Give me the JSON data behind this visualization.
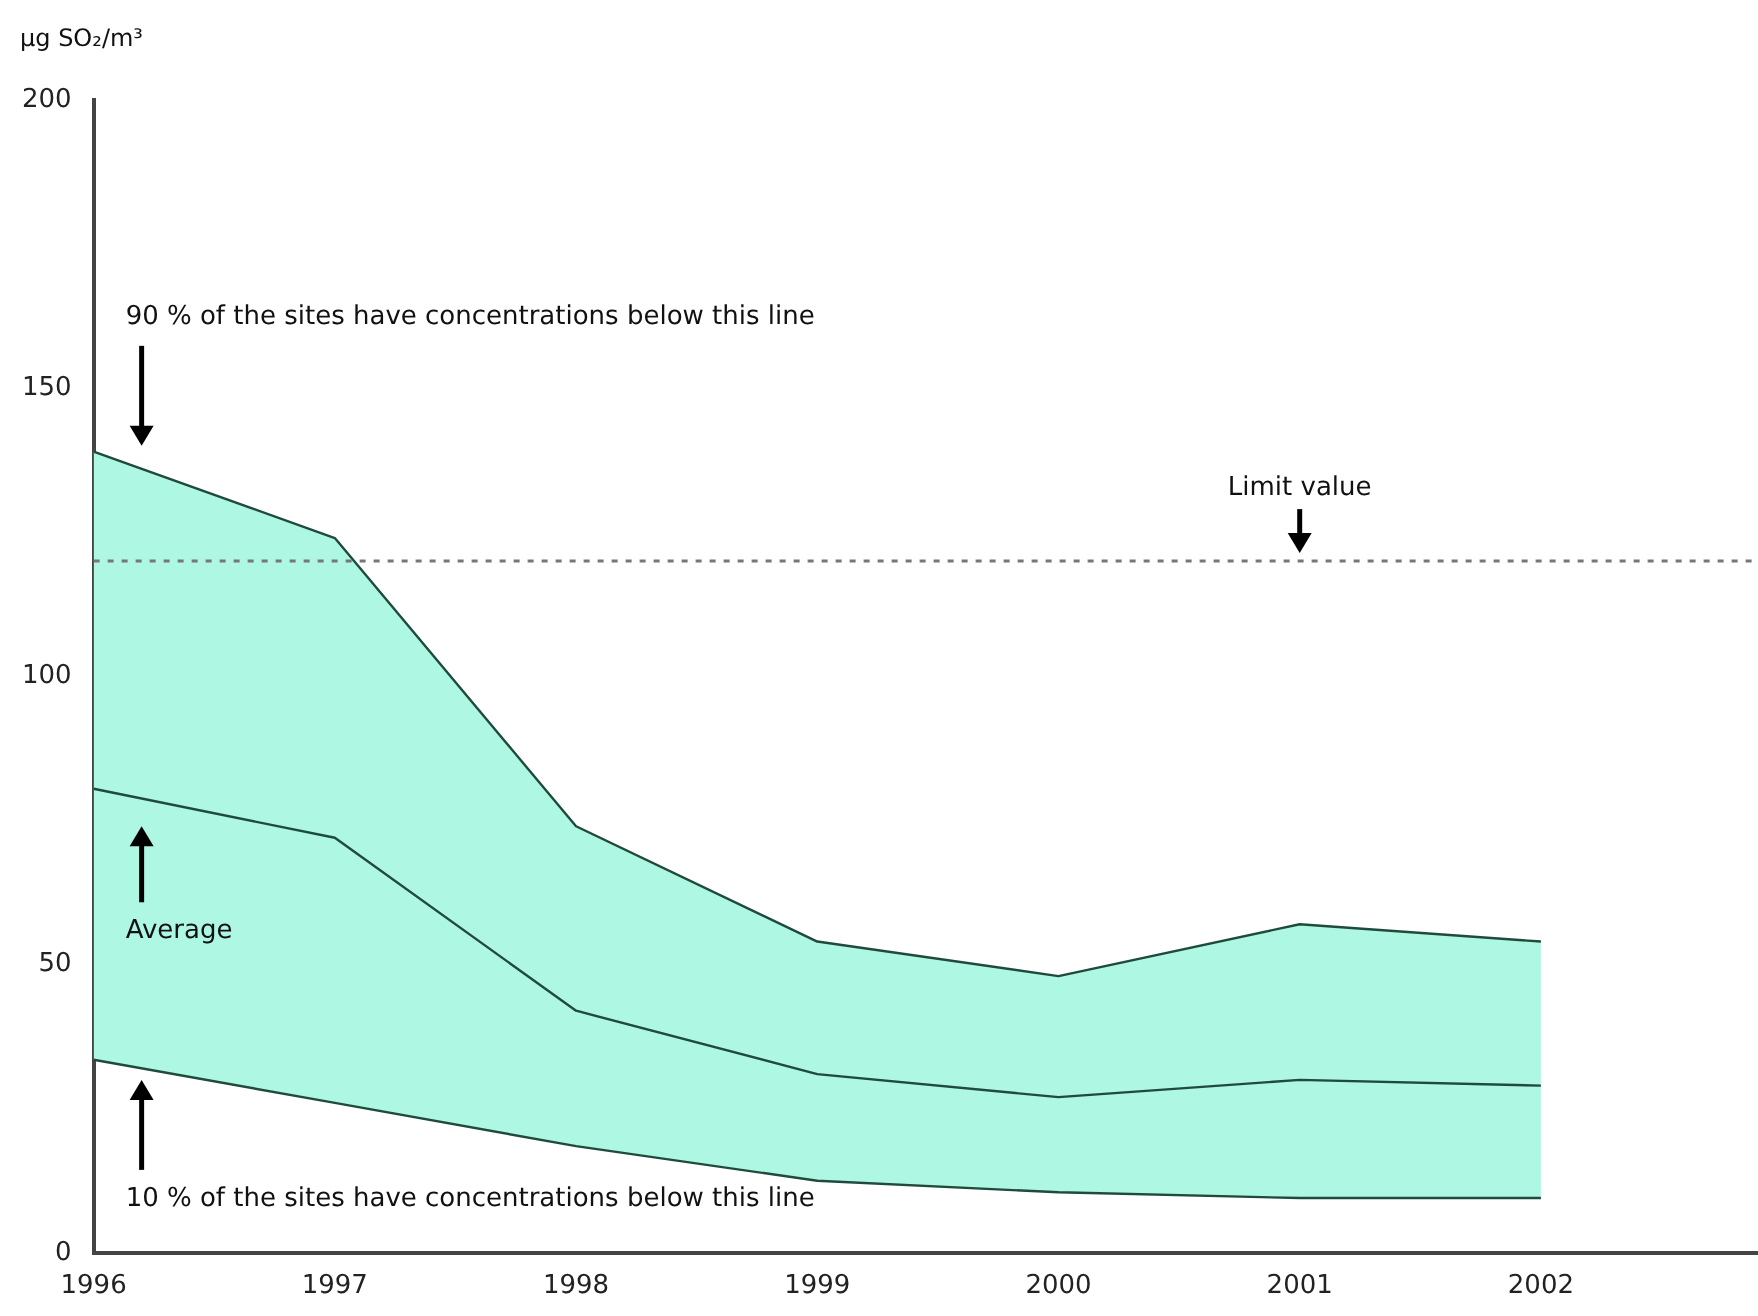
{
  "chart_data": {
    "type": "line",
    "ylabel": "µg SO₂/m³",
    "x": [
      1996,
      1997,
      1998,
      1999,
      2000,
      2001,
      2002
    ],
    "series": [
      {
        "color": "#1f4a3c",
        "values": [
          139,
          124,
          74,
          54,
          48,
          57,
          54
        ]
      },
      {
        "color": "#1f4a3c",
        "values": [
          80.5,
          72,
          42,
          31,
          27,
          30,
          29
        ],
        "lower": [
          33.5,
          26,
          18.5,
          12.5,
          10.5,
          9.5,
          9.5
        ],
        "upper": [
          139,
          124,
          74,
          54,
          48,
          57,
          54
        ]
      },
      {
        "color": "#1f4a3c",
        "values": [
          33.5,
          26,
          18.5,
          12.5,
          10.5,
          9.5,
          9.5
        ]
      }
    ],
    "xlim": [
      1996,
      2002.9
    ],
    "xticks": [
      1996,
      1997,
      1998,
      1999,
      2000,
      2001,
      2002
    ],
    "ylim": [
      0,
      200
    ],
    "yticks": [
      0,
      50,
      100,
      150,
      200
    ],
    "grid": false,
    "legend": false,
    "marker": "none",
    "line_style": "solid",
    "ref_lines": [
      {
        "axis": "y",
        "value": 120,
        "label": "Limit value",
        "color": "#777777",
        "line_style": "dotted"
      }
    ],
    "annotations": [
      "90 % of the sites have concentrations below this line",
      "Average",
      "10 % of the sites have concentrations below this line"
    ]
  }
}
